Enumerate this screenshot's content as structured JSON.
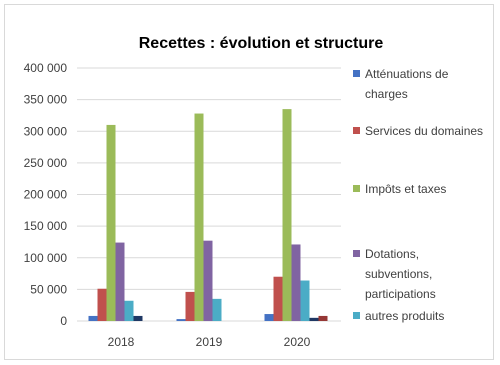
{
  "chart_data": {
    "type": "bar",
    "title": "Recettes : évolution et structure",
    "categories": [
      "2018",
      "2019",
      "2020"
    ],
    "ylim": [
      0,
      400000
    ],
    "yticks": [
      0,
      50000,
      100000,
      150000,
      200000,
      250000,
      300000,
      350000,
      400000
    ],
    "ytick_labels": [
      "0",
      "50 000",
      "100 000",
      "150 000",
      "200 000",
      "250 000",
      "300 000",
      "350 000",
      "400 000"
    ],
    "grid": true,
    "legend_position": "right",
    "series": [
      {
        "name": "Atténuations de charges",
        "color": "#4472c4",
        "values": [
          8000,
          3000,
          11000
        ]
      },
      {
        "name": "Services du domaines",
        "color": "#c0504d",
        "values": [
          51000,
          46000,
          70000
        ]
      },
      {
        "name": "Impôts et taxes",
        "color": "#9bbb59",
        "values": [
          310000,
          328000,
          335000
        ]
      },
      {
        "name": "Dotations, subventions, participations",
        "color": "#8064a2",
        "values": [
          124000,
          127000,
          121000
        ]
      },
      {
        "name": "autres produits",
        "color": "#4bacc6",
        "values": [
          32000,
          35000,
          64000
        ]
      },
      {
        "name": "",
        "color": "#1f3864",
        "values": [
          8000,
          0,
          5000
        ]
      },
      {
        "name": "",
        "color": "#953735",
        "values": [
          0,
          0,
          8000
        ]
      }
    ],
    "legend_lines": [
      [
        "Atténuations de",
        "charges"
      ],
      [
        "Services du domaines"
      ],
      [
        "Impôts et taxes"
      ],
      [
        "Dotations,",
        "subventions,",
        "participations"
      ],
      [
        "autres produits"
      ]
    ]
  }
}
